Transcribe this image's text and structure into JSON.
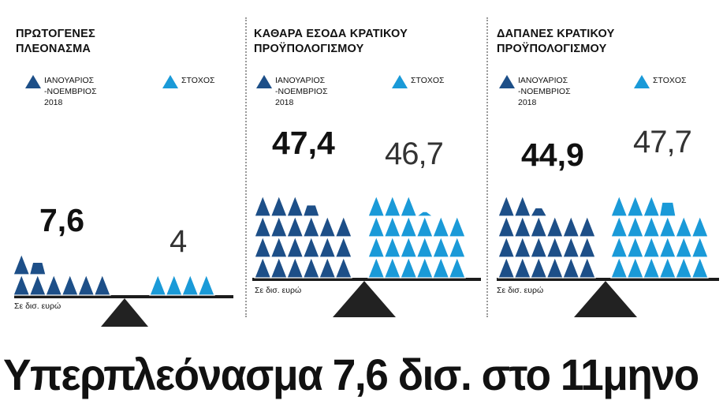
{
  "headline": "Υπερπλεόνασμα 7,6 δισ. στο 11μηνο",
  "unit_label": "Σε δισ. ευρώ",
  "legend": {
    "actual": "ΙΑΝΟΥΑΡΙΟΣ\n-ΝΟΕΜΒΡΙΟΣ 2018",
    "target": "ΣΤΟΧΟΣ"
  },
  "colors": {
    "actual": "#1d4f88",
    "target": "#1a9ad8",
    "fulcrum": "#222222"
  },
  "chart_data": [
    {
      "type": "bar",
      "title": "ΠΡΩΤΟΓΕΝΕΣ\nΠΛΕΟΝΑΣΜΑ",
      "categories": [
        "ΙΑΝΟΥΑΡΙΟΣ -ΝΟΕΜΒΡΙΟΣ 2018",
        "ΣΤΟΧΟΣ"
      ],
      "values": [
        7.6,
        4
      ],
      "value_labels": [
        "7,6",
        "4"
      ],
      "ylabel": "Σε δισ. ευρώ"
    },
    {
      "type": "bar",
      "title": "ΚΑΘΑΡΑ ΕΣΟΔΑ ΚΡΑΤΙΚΟΥ\nΠΡΟΫΠΟΛΟΓΙΣΜΟΥ",
      "categories": [
        "ΙΑΝΟΥΑΡΙΟΣ -ΝΟΕΜΒΡΙΟΣ 2018",
        "ΣΤΟΧΟΣ"
      ],
      "values": [
        47.4,
        46.7
      ],
      "value_labels": [
        "47,4",
        "46,7"
      ],
      "ylabel": "Σε δισ. ευρώ"
    },
    {
      "type": "bar",
      "title": "ΔΑΠΑΝΕΣ ΚΡΑΤΙΚΟΥ\nΠΡΟΫΠΟΛΟΓΙΣΜΟΥ",
      "categories": [
        "ΙΑΝΟΥΑΡΙΟΣ -ΝΟΕΜΒΡΙΟΣ 2018",
        "ΣΤΟΧΟΣ"
      ],
      "values": [
        44.9,
        47.7
      ],
      "value_labels": [
        "44,9",
        "47,7"
      ],
      "ylabel": "Σε δισ. ευρώ"
    }
  ]
}
